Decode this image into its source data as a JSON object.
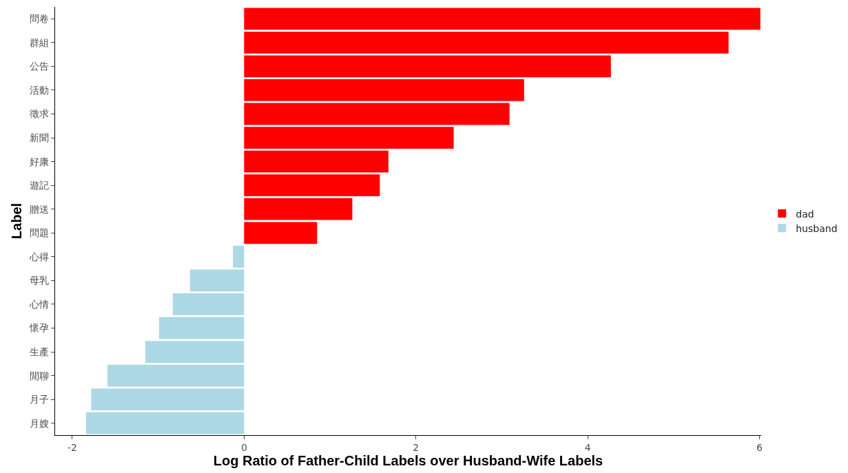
{
  "chart_data": {
    "type": "bar",
    "orientation": "horizontal",
    "xlabel": "Log Ratio of Father-Child Labels over Husband-Wife Labels",
    "ylabel": "Label",
    "categories": [
      "問卷",
      "群組",
      "公告",
      "活動",
      "徵求",
      "新聞",
      "好康",
      "遊記",
      "贈送",
      "問題",
      "心得",
      "母乳",
      "心情",
      "懷孕",
      "生產",
      "閒聊",
      "月子",
      "月嫂"
    ],
    "series": [
      {
        "name": "dad",
        "color": "#ff0000",
        "values": [
          6.01,
          5.64,
          4.27,
          3.26,
          3.09,
          2.44,
          1.68,
          1.58,
          1.26,
          0.85,
          null,
          null,
          null,
          null,
          null,
          null,
          null,
          null
        ]
      },
      {
        "name": "husband",
        "color": "#add8e6",
        "values": [
          null,
          null,
          null,
          null,
          null,
          null,
          null,
          null,
          null,
          null,
          -0.13,
          -0.63,
          -0.83,
          -0.99,
          -1.15,
          -1.59,
          -1.78,
          -1.84
        ]
      }
    ],
    "xlim": [
      -2.2,
      6.02
    ],
    "xticks": [
      -2,
      0,
      2,
      4,
      6
    ],
    "legend": "right"
  }
}
